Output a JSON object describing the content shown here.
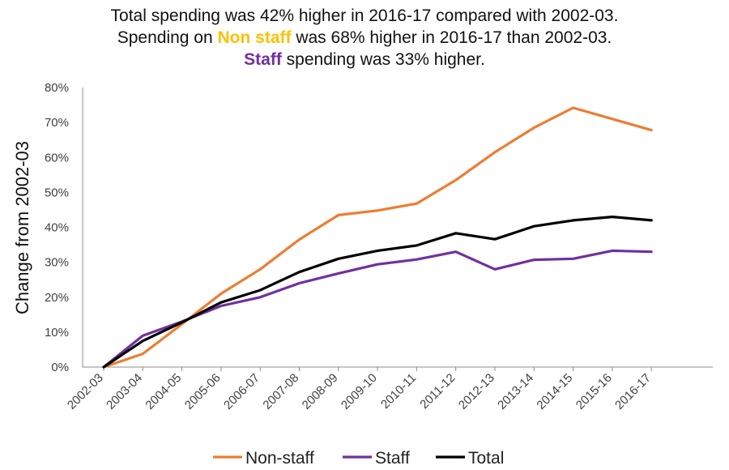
{
  "header": {
    "line1": "Total spending was 42% higher in 2016-17 compared with 2002-03.",
    "line2_prefix": "Spending on ",
    "line2_highlight": "Non staff",
    "line2_suffix": " was 68% higher in 2016-17 than 2002-03.",
    "line3_highlight": "Staff",
    "line3_suffix": " spending was 33% higher."
  },
  "colors": {
    "non_staff": "#ED7D31",
    "staff": "#7030A0",
    "total": "#000000",
    "highlight_non_staff": "#FFC000",
    "highlight_staff": "#7030A0",
    "axis": "#8c8c8c"
  },
  "chart_data": {
    "type": "line",
    "title": "Total spending was 42% higher in 2016-17 compared with 2002-03.",
    "xlabel": "",
    "ylabel": "Change from 2002-03",
    "ylim": [
      0,
      80
    ],
    "yticks": [
      "0%",
      "10%",
      "20%",
      "30%",
      "40%",
      "50%",
      "60%",
      "70%",
      "80%"
    ],
    "yticks_values": [
      0,
      10,
      20,
      30,
      40,
      50,
      60,
      70,
      80
    ],
    "grid": false,
    "legend_position": "bottom-center",
    "categories": [
      "2002-03",
      "2003-04",
      "2004-05",
      "2005-06",
      "2006-07",
      "2007-08",
      "2008-09",
      "2009-10",
      "2010-11",
      "2011-12",
      "2012-13",
      "2013-14",
      "2014-15",
      "2015-16",
      "2016-17"
    ],
    "series": [
      {
        "name": "Non-staff",
        "key": "non_staff",
        "values": [
          0,
          3.8,
          12.3,
          21.0,
          28.0,
          36.5,
          43.5,
          44.8,
          46.8,
          53.5,
          61.5,
          68.5,
          74.2,
          71.0,
          67.8
        ]
      },
      {
        "name": "Staff",
        "key": "staff",
        "values": [
          0,
          9.0,
          13.0,
          17.5,
          20.0,
          24.0,
          26.8,
          29.4,
          30.8,
          33.0,
          28.0,
          30.7,
          31.0,
          33.3,
          33.0
        ]
      },
      {
        "name": "Total",
        "key": "total",
        "values": [
          0,
          7.5,
          12.8,
          18.5,
          22.0,
          27.2,
          31.0,
          33.3,
          34.8,
          38.3,
          36.6,
          40.3,
          42.0,
          43.0,
          42.0
        ]
      }
    ]
  }
}
